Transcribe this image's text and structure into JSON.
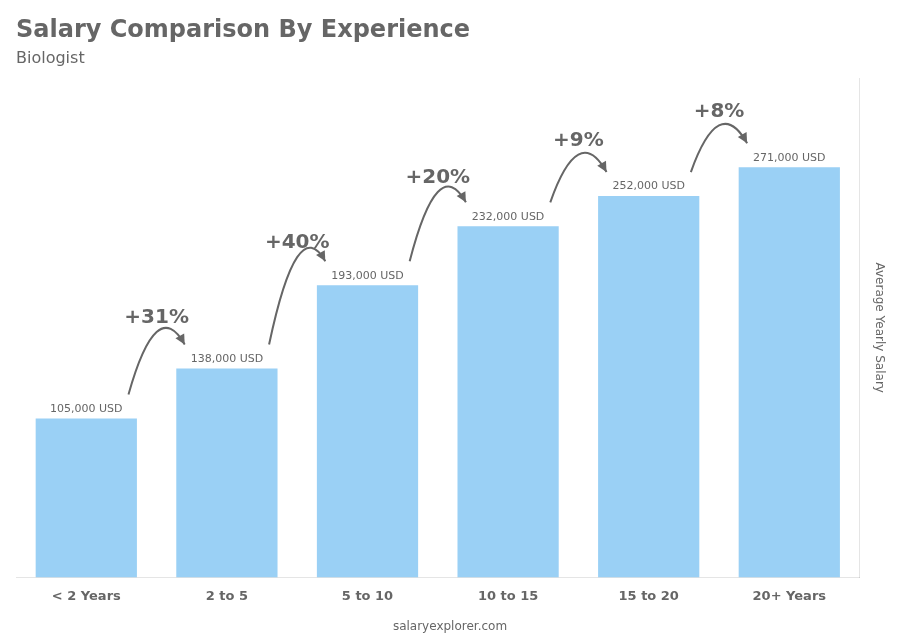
{
  "chart_data": {
    "type": "bar",
    "title": "Salary Comparison By Experience",
    "subtitle": "Biologist",
    "ylabel": "Average Yearly Salary",
    "source": "salaryexplorer.com",
    "categories": [
      "< 2 Years",
      "2 to 5",
      "5 to 10",
      "10 to 15",
      "15 to 20",
      "20+ Years"
    ],
    "values": [
      105000,
      138000,
      193000,
      232000,
      252000,
      271000
    ],
    "value_labels": [
      "105,000 USD",
      "138,000 USD",
      "193,000 USD",
      "232,000 USD",
      "252,000 USD",
      "271,000 USD"
    ],
    "data_labels": true,
    "annotations": [
      "+31%",
      "+40%",
      "+20%",
      "+9%",
      "+8%"
    ],
    "ylim": [
      0,
      330000
    ],
    "grid": false,
    "tick_labels": "x"
  }
}
